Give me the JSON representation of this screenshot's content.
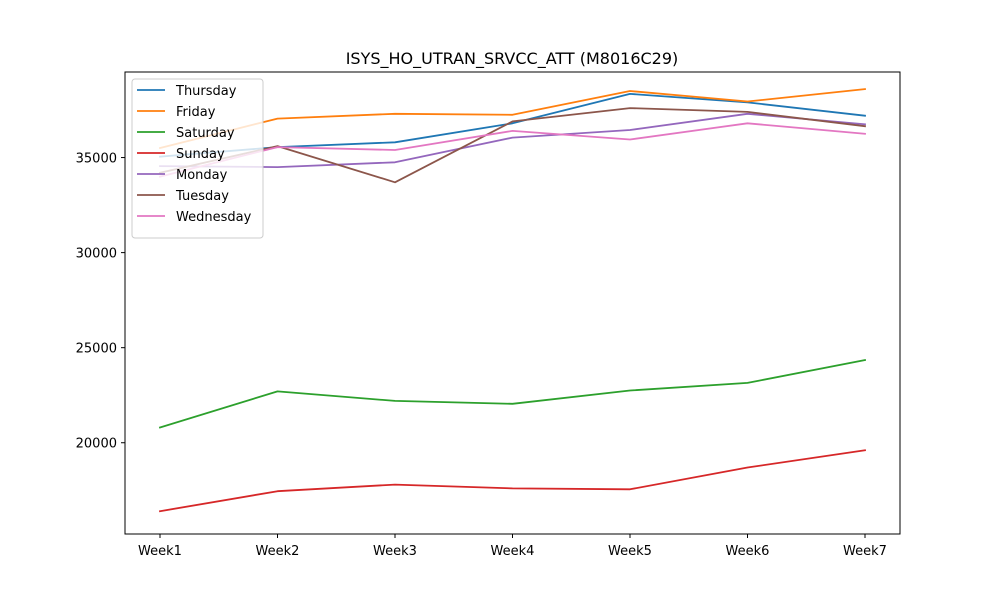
{
  "chart_data": {
    "type": "line",
    "title": "ISYS_HO_UTRAN_SRVCC_ATT (M8016C29)",
    "xlabel": "",
    "ylabel": "",
    "categories": [
      "Week1",
      "Week2",
      "Week3",
      "Week4",
      "Week5",
      "Week6",
      "Week7"
    ],
    "ylim": [
      15200,
      39500
    ],
    "yticks": [
      20000,
      25000,
      30000,
      35000
    ],
    "grid": false,
    "legend_position": "upper-left",
    "series": [
      {
        "name": "Thursday",
        "color": "#1f77b4",
        "values": [
          35050,
          35550,
          35800,
          36800,
          38350,
          37900,
          37200
        ]
      },
      {
        "name": "Friday",
        "color": "#ff7f0e",
        "values": [
          35500,
          37050,
          37300,
          37250,
          38500,
          37950,
          38600
        ]
      },
      {
        "name": "Saturday",
        "color": "#2ca02c",
        "values": [
          20800,
          22700,
          22200,
          22050,
          22750,
          23150,
          24350
        ]
      },
      {
        "name": "Sunday",
        "color": "#d62728",
        "values": [
          16400,
          17450,
          17800,
          17600,
          17550,
          18700,
          19600
        ]
      },
      {
        "name": "Monday",
        "color": "#9467bd",
        "values": [
          34550,
          34500,
          34750,
          36050,
          36450,
          37300,
          36750
        ]
      },
      {
        "name": "Tuesday",
        "color": "#8c564b",
        "values": [
          34200,
          35600,
          33700,
          36900,
          37600,
          37400,
          36650
        ]
      },
      {
        "name": "Wednesday",
        "color": "#e377c2",
        "values": [
          34000,
          35550,
          35400,
          36400,
          35950,
          36800,
          36250
        ]
      }
    ]
  }
}
